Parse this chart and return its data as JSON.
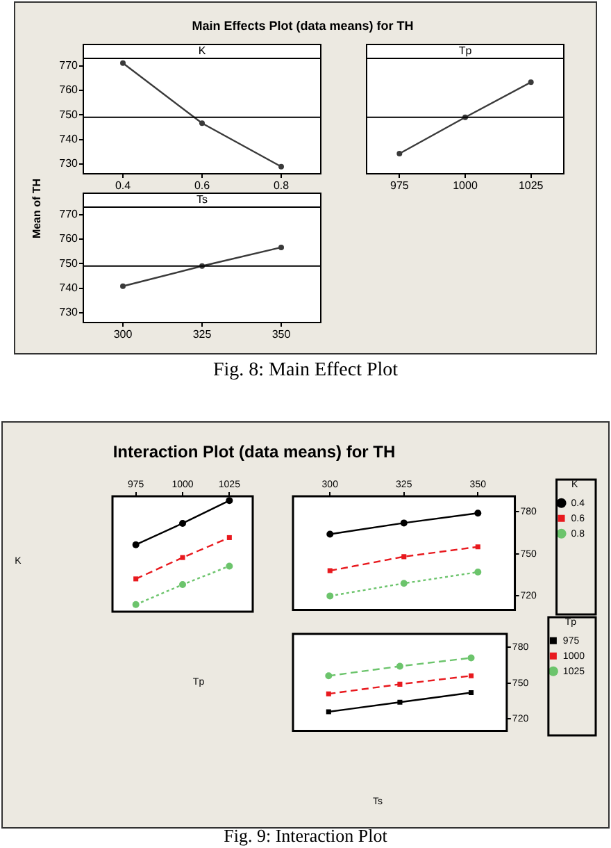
{
  "chart_data": [
    {
      "type": "line",
      "title": "Main Effects Plot (data means) for TH",
      "subtitle": "K",
      "ylabel": "Mean of TH",
      "categories": [
        "0.4",
        "0.6",
        "0.8"
      ],
      "marker": "circle",
      "series": [
        {
          "color": "#3a3a3a",
          "values": [
            771.1,
            746.6,
            728.9
          ]
        }
      ],
      "ylim": [
        726,
        773
      ],
      "yticks": [
        730,
        740,
        750,
        760,
        770
      ],
      "ref_lines": [
        {
          "axis": "y",
          "value": 749
        }
      ]
    },
    {
      "type": "line",
      "subtitle": "Tp",
      "categories": [
        "975",
        "1000",
        "1025"
      ],
      "marker": "circle",
      "series": [
        {
          "color": "#3a3a3a",
          "values": [
            734.2,
            749.0,
            763.3
          ]
        }
      ],
      "ylim": [
        726,
        773
      ],
      "tick_labels": "x",
      "ref_lines": [
        {
          "axis": "y",
          "value": 749
        }
      ]
    },
    {
      "type": "line",
      "subtitle": "Ts",
      "categories": [
        "300",
        "325",
        "350"
      ],
      "marker": "circle",
      "series": [
        {
          "color": "#3a3a3a",
          "values": [
            740.8,
            749,
            756.6
          ]
        }
      ],
      "ylim": [
        726,
        773
      ],
      "yticks": [
        730,
        740,
        750,
        760,
        770
      ],
      "ref_lines": [
        {
          "axis": "y",
          "value": 749
        }
      ],
      "annotations": [
        "Fig. 8: Main Effect Plot"
      ]
    },
    {
      "type": "line",
      "title": "Interaction Plot (data means) for TH",
      "xlabel": "Tp",
      "ylabel": "K",
      "categories": [
        "975",
        "1000",
        "1025"
      ],
      "series": [
        {
          "color": "#000000",
          "values": [
            757,
            772,
            788
          ],
          "marker": "circle",
          "line_style": "solid"
        },
        {
          "color": "#e8191e",
          "values": [
            733,
            748,
            762
          ],
          "marker": "square",
          "line_style": "dashed"
        },
        {
          "color": "#6cc46c",
          "values": [
            715,
            729,
            742
          ],
          "marker": "circle",
          "line_style": "dotted"
        }
      ],
      "ylim": [
        710,
        791
      ],
      "tick_labels": "x"
    },
    {
      "type": "line",
      "categories": [
        "300",
        "325",
        "350"
      ],
      "legend": "right",
      "legend_title": "K",
      "series": [
        {
          "name": "0.4",
          "color": "#000000",
          "values": [
            764,
            772,
            779
          ],
          "marker": "circle",
          "line_style": "solid"
        },
        {
          "name": "0.6",
          "color": "#e8191e",
          "values": [
            738,
            748,
            755
          ],
          "marker": "square",
          "line_style": "dashed"
        },
        {
          "name": "0.8",
          "color": "#6cc46c",
          "values": [
            720,
            729,
            737
          ],
          "marker": "circle",
          "line_style": "dotted"
        }
      ],
      "ylim": [
        710,
        791
      ],
      "yticks": [
        720,
        750,
        780
      ]
    },
    {
      "type": "line",
      "xlabel": "Ts",
      "categories": [
        "300",
        "325",
        "350"
      ],
      "legend": "right",
      "legend_title": "Tp",
      "tick_labels": "y",
      "series": [
        {
          "name": "975",
          "color": "#000000",
          "values": [
            726,
            734,
            742
          ],
          "marker": "square",
          "line_style": "solid"
        },
        {
          "name": "1000",
          "color": "#e8191e",
          "values": [
            741,
            749,
            756
          ],
          "marker": "square",
          "line_style": "dashed"
        },
        {
          "name": "1025",
          "color": "#6cc46c",
          "values": [
            756,
            764,
            771
          ],
          "marker": "circle",
          "line_style": "dashed"
        }
      ],
      "ylim": [
        710,
        791
      ],
      "yticks": [
        720,
        750,
        780
      ],
      "annotations": [
        "Fig. 9: Interaction Plot"
      ]
    }
  ]
}
